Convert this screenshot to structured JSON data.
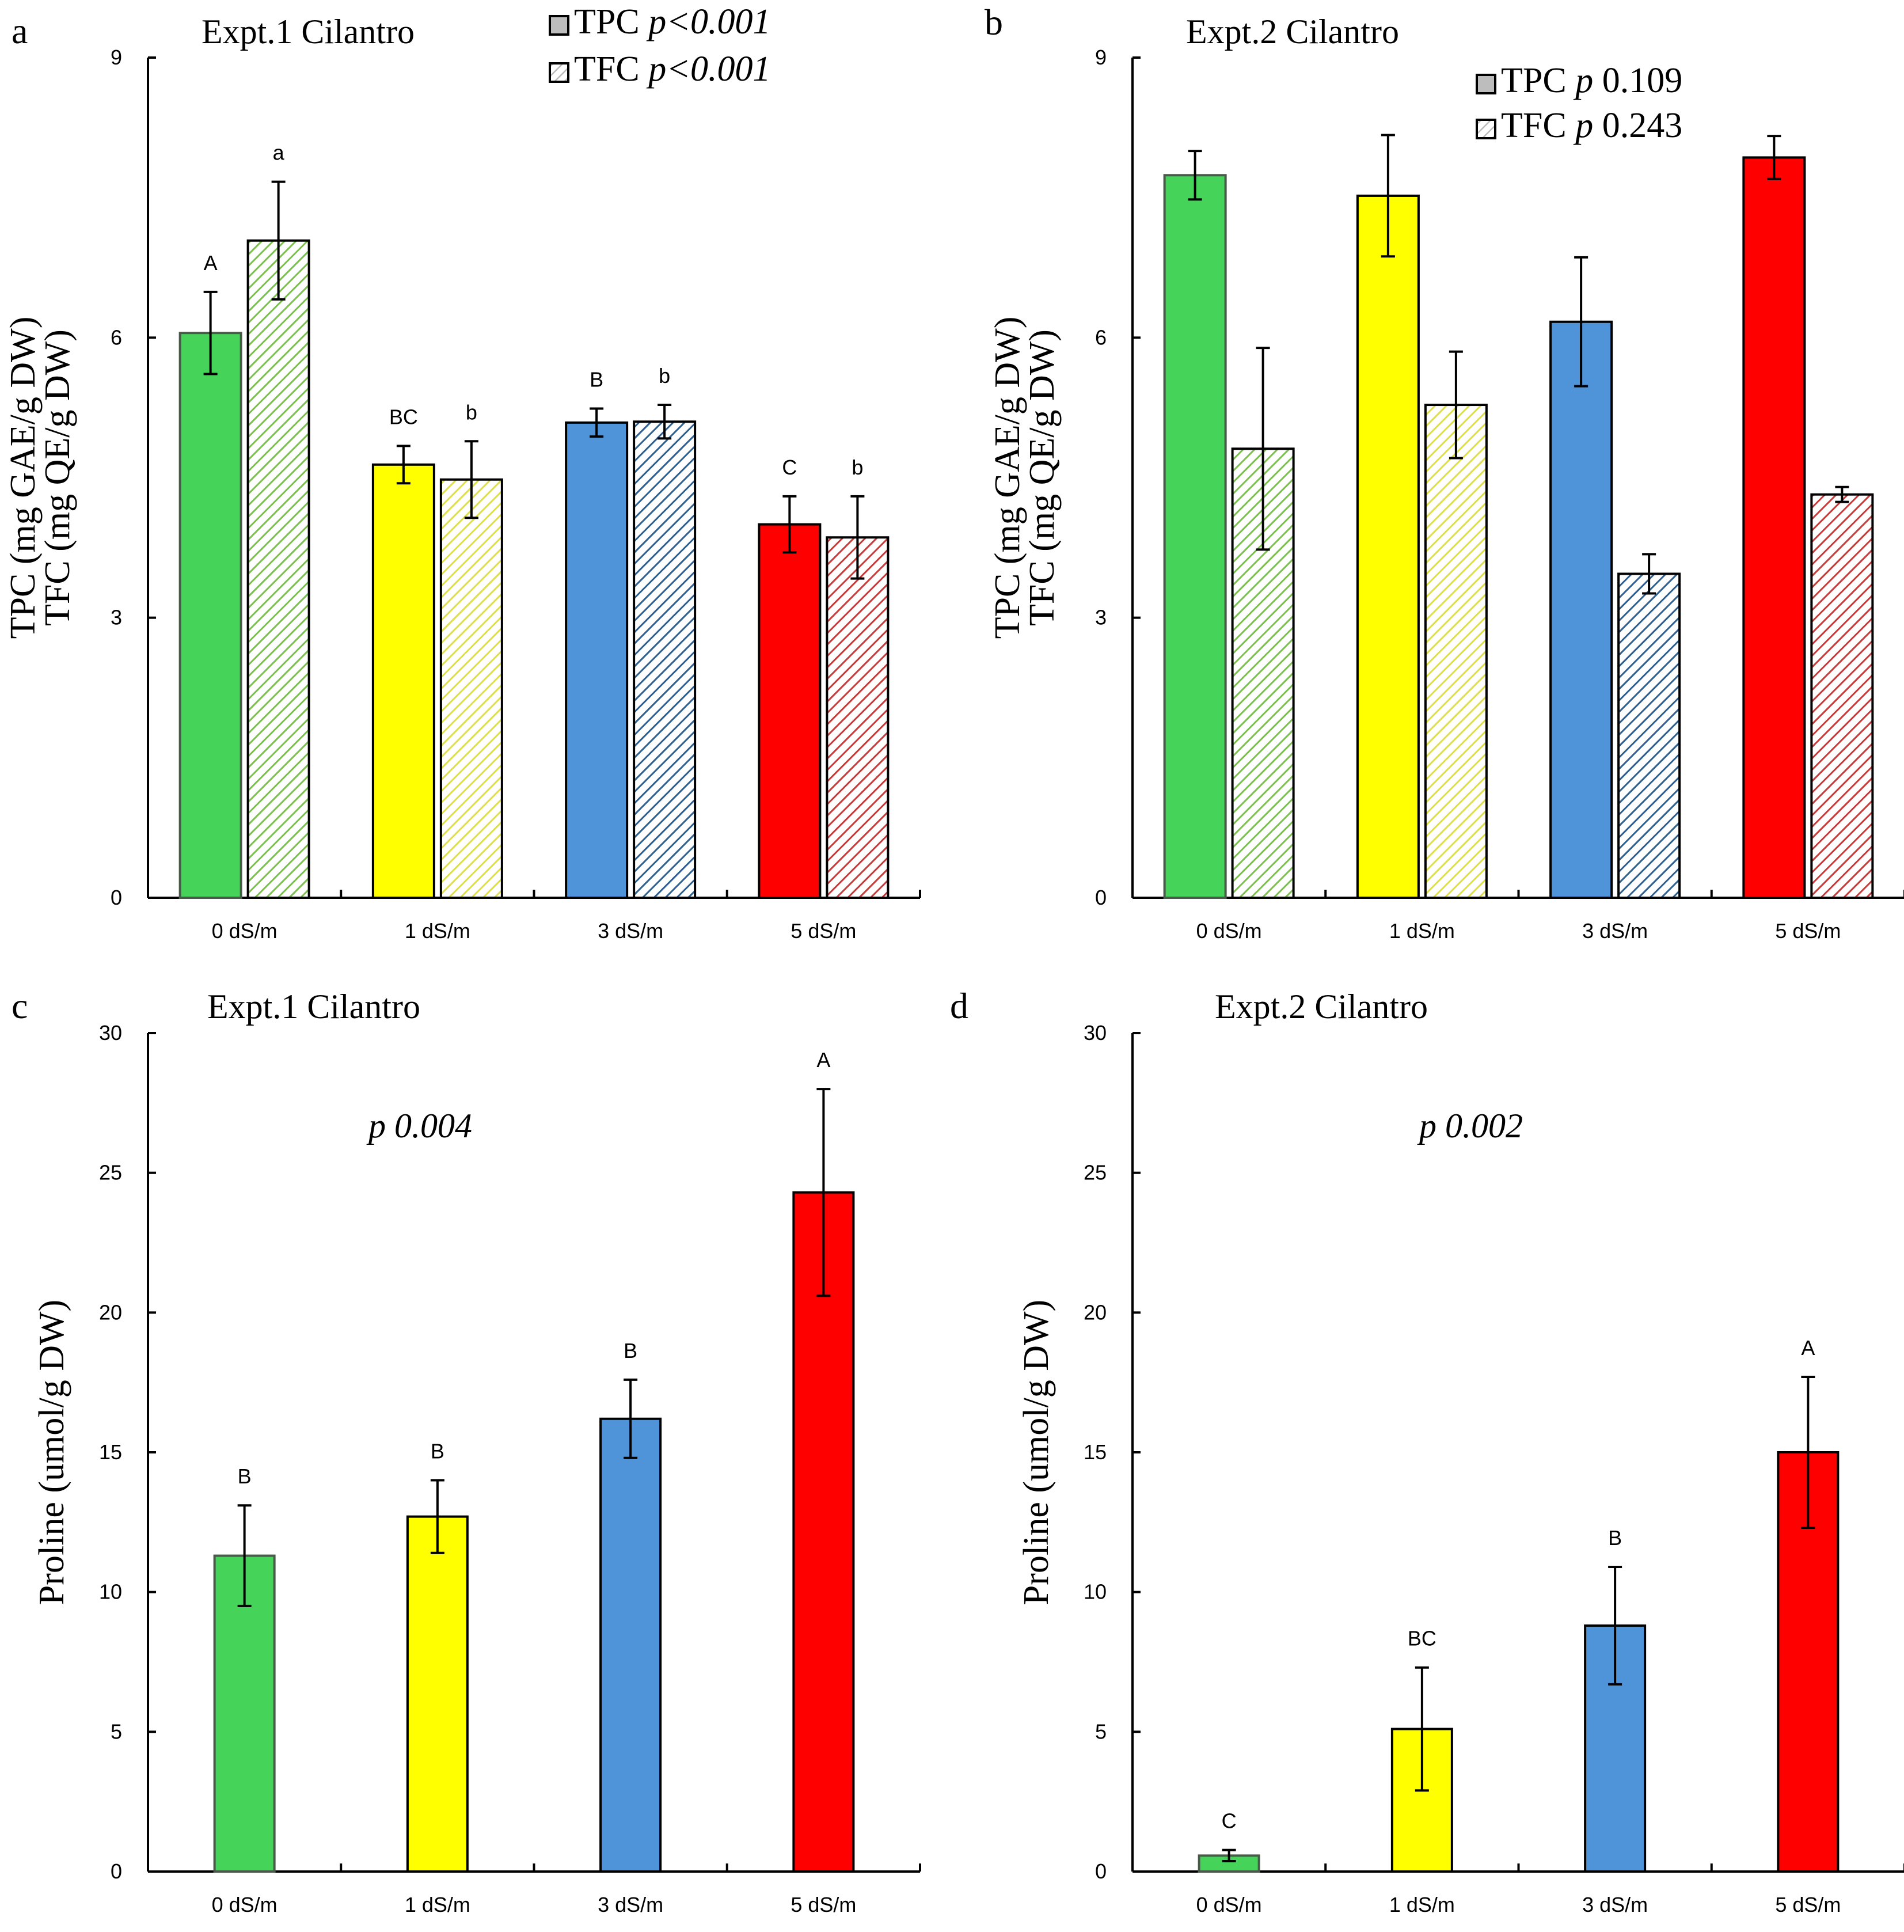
{
  "colors": {
    "green": "#46d35a",
    "yellow": "#ffff00",
    "blue": "#4f94d8",
    "red": "#ff0000",
    "green_dark": "#7bbf4e",
    "yellow_dark": "#dede4a",
    "blue_dark": "#2e5f8e",
    "red_dark": "#c63a3a",
    "axis": "#000000"
  },
  "chart_data": [
    {
      "panel_letter": "a",
      "type": "bar",
      "title": "Expt.1 Cilantro",
      "ylabel_lines": [
        "TPC (mg GAE/g DW)",
        "TFC (mg QE/g DW)"
      ],
      "ylim": [
        0,
        9
      ],
      "yticks": [
        "0",
        "3",
        "6",
        "9"
      ],
      "categories": [
        "0 dS/m",
        "1 dS/m",
        "3 dS/m",
        "5 dS/m"
      ],
      "legend": [
        {
          "name": "TPC",
          "p": "p<0.001",
          "p_italic": true
        },
        {
          "name": "TFC",
          "p": "p<0.001",
          "p_italic": true
        }
      ],
      "legend_position": "top-right",
      "series": [
        {
          "name": "TPC",
          "values": [
            6.05,
            4.64,
            5.09,
            4.0
          ],
          "errors": [
            0.44,
            0.2,
            0.15,
            0.3
          ],
          "letters": [
            "A",
            "BC",
            "B",
            "C"
          ]
        },
        {
          "name": "TFC",
          "values": [
            7.04,
            4.48,
            5.1,
            3.86
          ],
          "errors": [
            0.63,
            0.41,
            0.18,
            0.44
          ],
          "letters": [
            "a",
            "b",
            "b",
            "b"
          ]
        }
      ]
    },
    {
      "panel_letter": "b",
      "type": "bar",
      "title": "Expt.2 Cilantro",
      "ylabel_lines": [
        "TPC (mg GAE/g DW)",
        "TFC (mg QE/g DW)"
      ],
      "ylim": [
        0,
        9
      ],
      "yticks": [
        "0",
        "3",
        "6",
        "9"
      ],
      "categories": [
        "0 dS/m",
        "1 dS/m",
        "3 dS/m",
        "5 dS/m"
      ],
      "legend": [
        {
          "name": "TPC",
          "p_prefix": "p",
          "p": "0.109"
        },
        {
          "name": "TFC",
          "p_prefix": "p",
          "p": "0.243"
        }
      ],
      "legend_position": "top-right",
      "series": [
        {
          "name": "TPC",
          "values": [
            7.74,
            7.52,
            6.17,
            7.93
          ],
          "errors": [
            0.26,
            0.65,
            0.69,
            0.23
          ],
          "letters": [
            "",
            "",
            "",
            ""
          ]
        },
        {
          "name": "TFC",
          "values": [
            4.81,
            5.28,
            3.47,
            4.32
          ],
          "errors": [
            1.08,
            0.57,
            0.21,
            0.08
          ],
          "letters": [
            "",
            "",
            "",
            ""
          ]
        }
      ]
    },
    {
      "panel_letter": "c",
      "type": "bar",
      "title": "Expt.1 Cilantro",
      "ylabel_lines": [
        "Proline (umol/g DW)"
      ],
      "ylim": [
        0,
        30
      ],
      "yticks": [
        "0",
        "5",
        "10",
        "15",
        "20",
        "25",
        "30"
      ],
      "categories": [
        "0 dS/m",
        "1 dS/m",
        "3 dS/m",
        "5 dS/m"
      ],
      "annotation": "p 0.004",
      "series": [
        {
          "name": "Proline",
          "values": [
            11.3,
            12.7,
            16.2,
            24.3
          ],
          "errors": [
            1.8,
            1.3,
            1.4,
            3.7
          ],
          "letters": [
            "B",
            "B",
            "B",
            "A"
          ]
        }
      ]
    },
    {
      "panel_letter": "d",
      "type": "bar",
      "title": "Expt.2 Cilantro",
      "ylabel_lines": [
        "Proline (umol/g DW)"
      ],
      "ylim": [
        0,
        30
      ],
      "yticks": [
        "0",
        "5",
        "10",
        "15",
        "20",
        "25",
        "30"
      ],
      "categories": [
        "0 dS/m",
        "1 dS/m",
        "3 dS/m",
        "5 dS/m"
      ],
      "annotation": "p 0.002",
      "series": [
        {
          "name": "Proline",
          "values": [
            0.57,
            5.1,
            8.8,
            15.0
          ],
          "errors": [
            0.2,
            2.2,
            2.1,
            2.7
          ],
          "letters": [
            "C",
            "BC",
            "B",
            "A"
          ]
        }
      ]
    }
  ]
}
